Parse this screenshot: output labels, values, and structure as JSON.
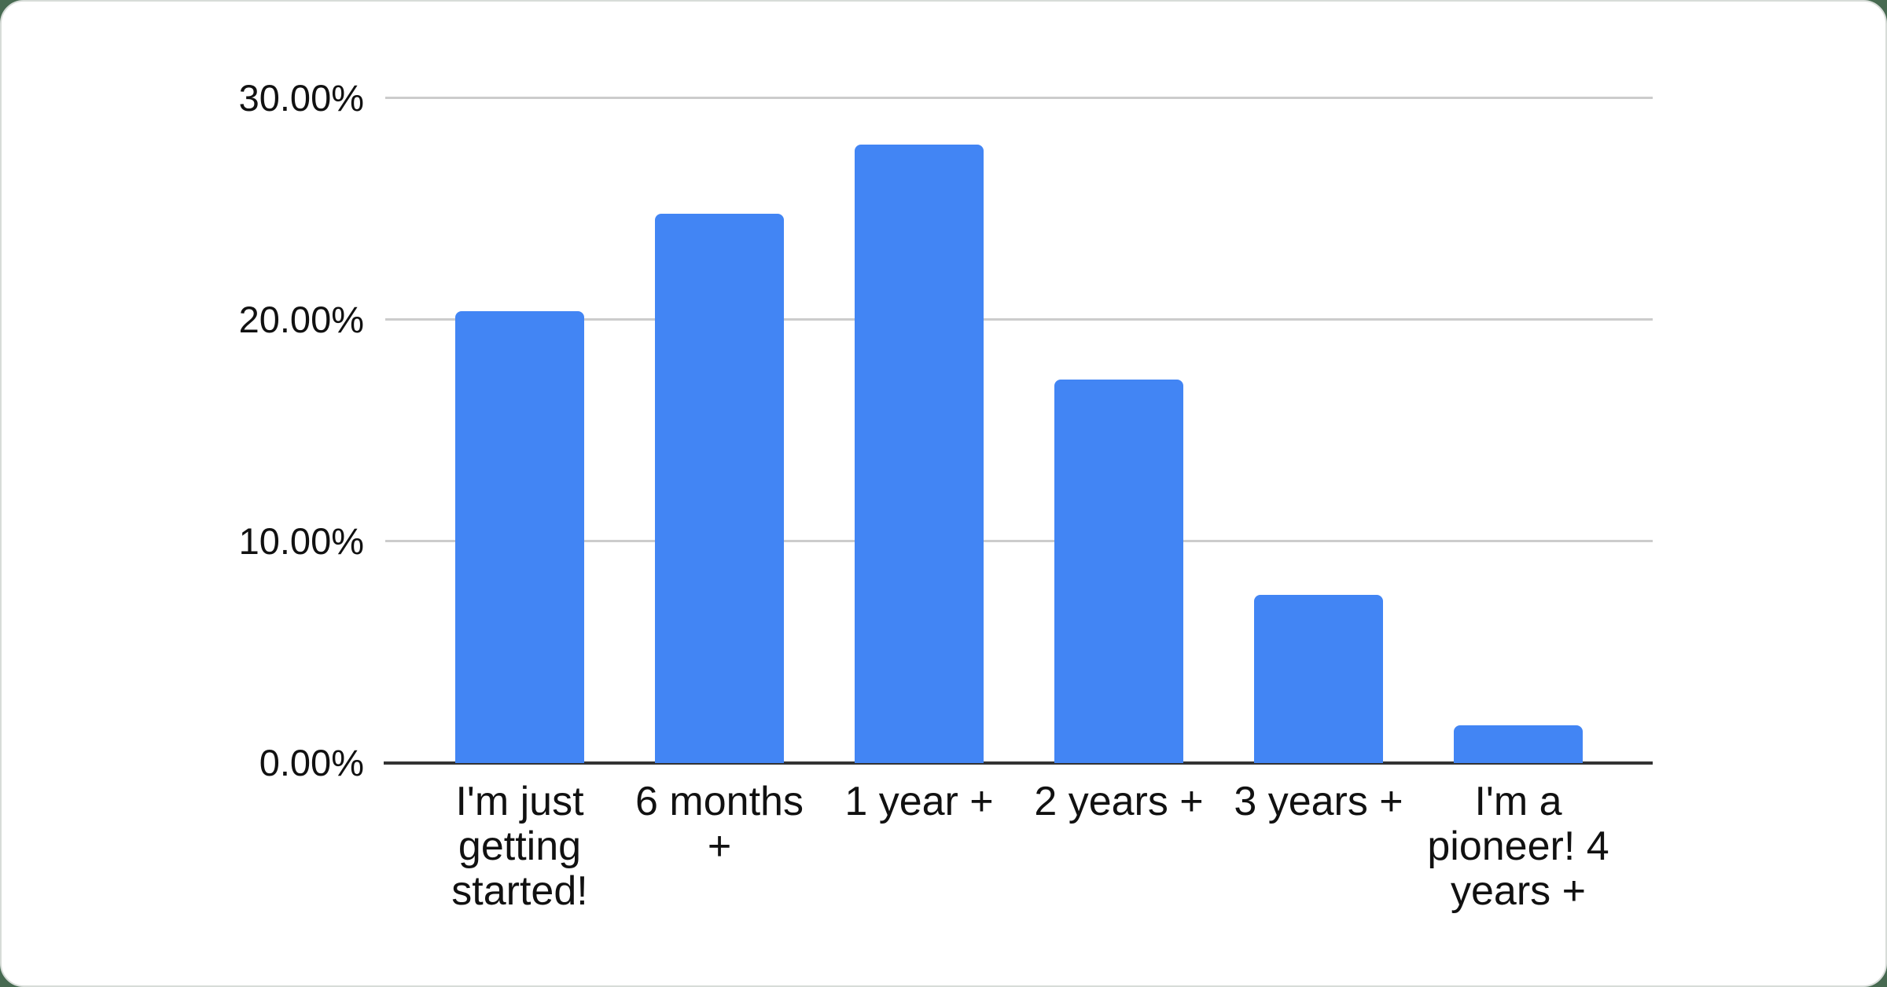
{
  "chart_data": {
    "type": "bar",
    "title": "",
    "xlabel": "",
    "ylabel": "",
    "categories": [
      "I'm just getting started!",
      "6 months +",
      "1 year +",
      "2 years +",
      "3 years +",
      "I'm a pioneer! 4 years +"
    ],
    "values": [
      20.4,
      24.8,
      27.9,
      17.3,
      7.6,
      1.7
    ],
    "value_unit": "%",
    "ylim": [
      0,
      30
    ],
    "ytick_step": 10,
    "ytick_labels": [
      "0.00%",
      "10.00%",
      "20.00%",
      "30.00%"
    ],
    "grid": true,
    "legend_position": "none",
    "colors": {
      "bar": "#4285f4",
      "gridline": "#cccccc",
      "axis_baseline": "#333333",
      "text": "#111111",
      "chart_background": "#ffffff",
      "page_background": "#476a51",
      "card_border": "#d7dcd8"
    }
  }
}
